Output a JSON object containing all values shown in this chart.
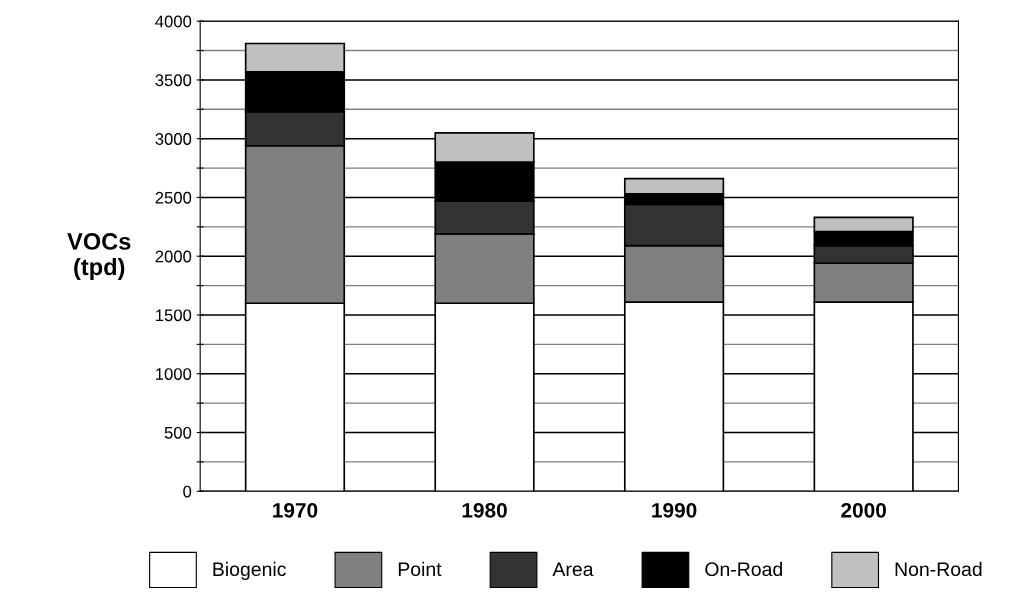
{
  "chart_data": {
    "type": "bar",
    "stacked": true,
    "ylabel": "VOCs\n(tpd)",
    "categories": [
      "1970",
      "1980",
      "1990",
      "2000"
    ],
    "series": [
      {
        "name": "Biogenic",
        "color": "#ffffff",
        "values": [
          1600,
          1600,
          1610,
          1610
        ]
      },
      {
        "name": "Point",
        "color": "#808080",
        "values": [
          1340,
          590,
          480,
          330
        ]
      },
      {
        "name": "Area",
        "color": "#333333",
        "values": [
          290,
          280,
          350,
          150
        ]
      },
      {
        "name": "On-Road",
        "color": "#000000",
        "values": [
          340,
          330,
          90,
          120
        ]
      },
      {
        "name": "Non-Road",
        "color": "#c0c0c0",
        "values": [
          240,
          250,
          130,
          120
        ]
      }
    ],
    "ylim": [
      0,
      4000
    ],
    "yticks": [
      0,
      {
        "value": 250,
        "label": null
      },
      500,
      {
        "value": 750,
        "label": null
      },
      1000,
      {
        "value": 1250,
        "label": null
      },
      1500,
      {
        "value": 1750,
        "label": null
      },
      2000,
      {
        "value": 2250,
        "label": null
      },
      2500,
      {
        "value": 2750,
        "label": null
      },
      3000,
      {
        "value": 3250,
        "label": null
      },
      3500,
      {
        "value": 3750,
        "label": null
      },
      4000
    ],
    "grid": "y",
    "legend": "bottom"
  }
}
